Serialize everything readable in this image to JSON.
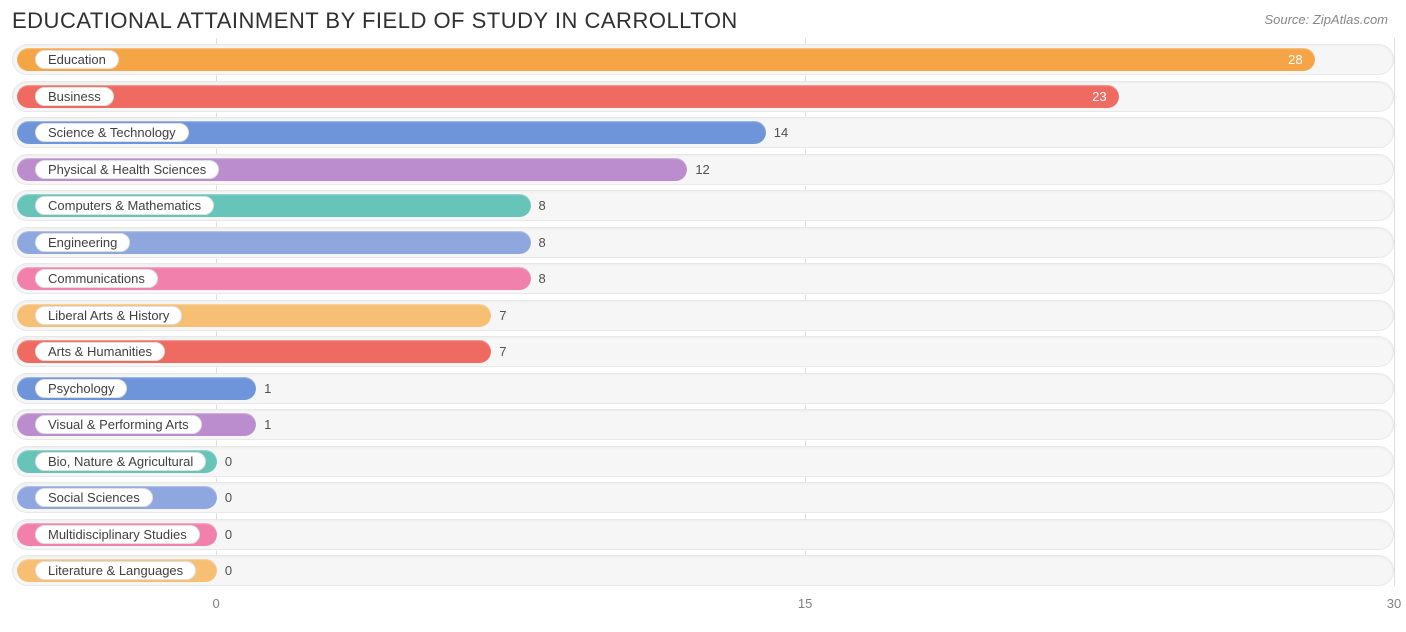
{
  "header": {
    "title": "EDUCATIONAL ATTAINMENT BY FIELD OF STUDY IN CARROLLTON",
    "source": "Source: ZipAtlas.com"
  },
  "chart": {
    "type": "bar",
    "orientation": "horizontal",
    "background_color": "#ffffff",
    "row_background": "#f6f6f6",
    "row_border": "#e8e8e8",
    "grid_color": "#dddddd",
    "label_pill_bg": "#ffffff",
    "label_pill_border": "#e0e0e0",
    "label_fontsize": 13,
    "title_fontsize": 22,
    "x_axis": {
      "min": 0,
      "max": 30,
      "ticks": [
        0,
        15,
        30
      ],
      "label_color": "#808080"
    },
    "pill_offset_value": 5.2,
    "bars": [
      {
        "label": "Education",
        "value": 28,
        "color": "#f6a546",
        "value_color": "#ffffff"
      },
      {
        "label": "Business",
        "value": 23,
        "color": "#ef6a61",
        "value_color": "#ffffff"
      },
      {
        "label": "Science & Technology",
        "value": 14,
        "color": "#6e95d9",
        "value_color": "#505050"
      },
      {
        "label": "Physical & Health Sciences",
        "value": 12,
        "color": "#bb8dce",
        "value_color": "#505050"
      },
      {
        "label": "Computers & Mathematics",
        "value": 8,
        "color": "#66c4b9",
        "value_color": "#505050"
      },
      {
        "label": "Engineering",
        "value": 8,
        "color": "#8ea7de",
        "value_color": "#505050"
      },
      {
        "label": "Communications",
        "value": 8,
        "color": "#f181ac",
        "value_color": "#505050"
      },
      {
        "label": "Liberal Arts & History",
        "value": 7,
        "color": "#f6bf74",
        "value_color": "#505050"
      },
      {
        "label": "Arts & Humanities",
        "value": 7,
        "color": "#ef6a61",
        "value_color": "#505050"
      },
      {
        "label": "Psychology",
        "value": 1,
        "color": "#6e95d9",
        "value_color": "#505050"
      },
      {
        "label": "Visual & Performing Arts",
        "value": 1,
        "color": "#bb8dce",
        "value_color": "#505050"
      },
      {
        "label": "Bio, Nature & Agricultural",
        "value": 0,
        "color": "#66c4b9",
        "value_color": "#505050"
      },
      {
        "label": "Social Sciences",
        "value": 0,
        "color": "#8ea7de",
        "value_color": "#505050"
      },
      {
        "label": "Multidisciplinary Studies",
        "value": 0,
        "color": "#f181ac",
        "value_color": "#505050"
      },
      {
        "label": "Literature & Languages",
        "value": 0,
        "color": "#f6bf74",
        "value_color": "#505050"
      }
    ]
  }
}
